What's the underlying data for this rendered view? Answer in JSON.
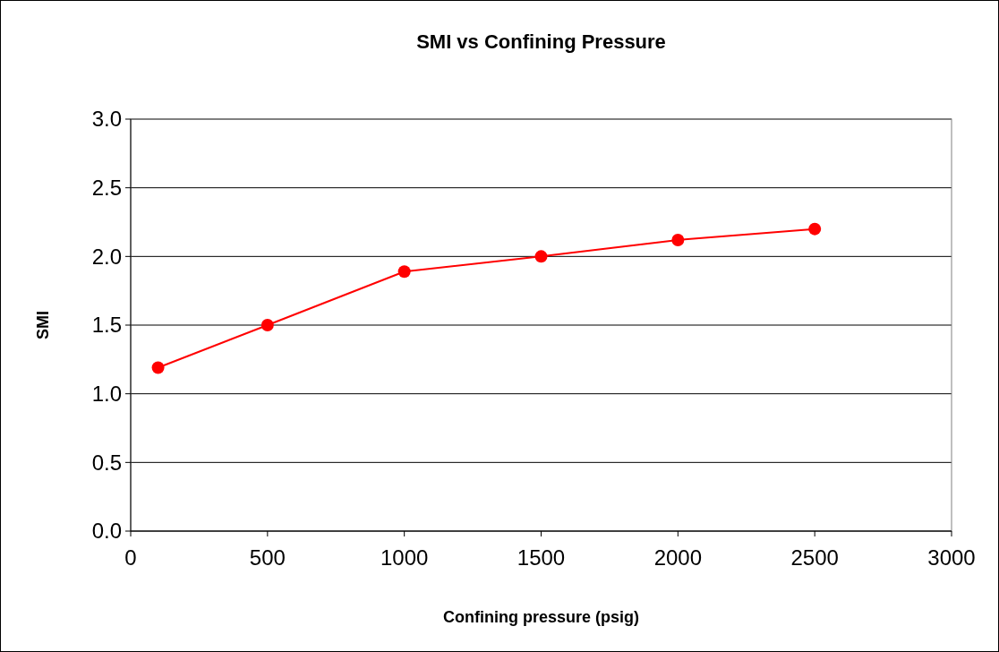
{
  "chart_data": {
    "type": "line",
    "title": "SMI vs Confining Pressure",
    "xlabel": "Confining pressure (psig)",
    "ylabel": "SMI",
    "x": [
      100,
      500,
      1000,
      1500,
      2000,
      2500
    ],
    "series": [
      {
        "color": "#ff0000",
        "values": [
          1.19,
          1.5,
          1.89,
          2.0,
          2.12,
          2.2
        ]
      }
    ],
    "xlim": [
      0,
      3000
    ],
    "xticks": [
      0,
      500,
      1000,
      1500,
      2000,
      2500,
      3000
    ],
    "ylim": [
      0,
      3
    ],
    "yticks": [
      {
        "value": 0,
        "label": "0.0"
      },
      {
        "value": 0.5,
        "label": "0.5"
      },
      {
        "value": 1,
        "label": "1.0"
      },
      {
        "value": 1.5,
        "label": "1.5"
      },
      {
        "value": 2,
        "label": "2.0"
      },
      {
        "value": 2.5,
        "label": "2.5"
      },
      {
        "value": 3,
        "label": "3.0"
      }
    ],
    "grid": "y",
    "marker": "circle",
    "line_style": "solid"
  }
}
